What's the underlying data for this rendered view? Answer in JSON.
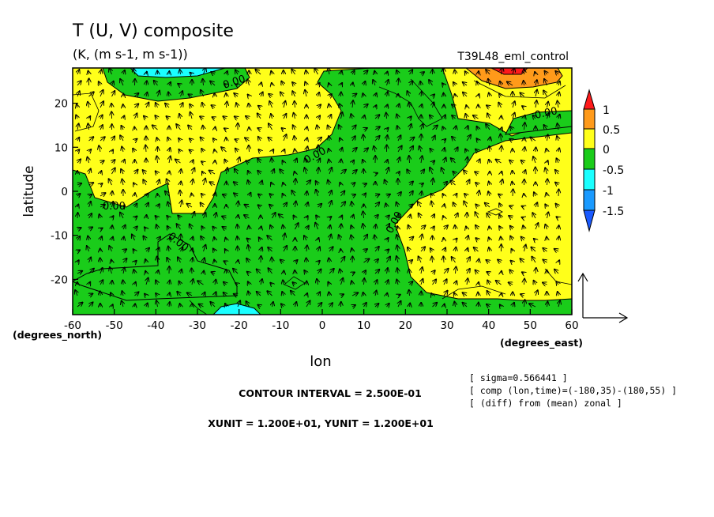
{
  "chart_data": {
    "type": "contour",
    "title": "T (U, V) composite",
    "subtitle": "(K, (m s-1, m s-1))",
    "run_label": "T39L48_eml_control",
    "xlabel": "lon",
    "ylabel": "latitude",
    "x_unit_label": "(degrees_east)",
    "y_unit_label": "(degrees_north)",
    "xlim": [
      -60,
      60
    ],
    "ylim": [
      -28,
      28
    ],
    "x_ticks": [
      -60,
      -50,
      -40,
      -30,
      -20,
      -10,
      0,
      10,
      20,
      30,
      40,
      50,
      60
    ],
    "y_ticks": [
      -20,
      -10,
      0,
      10,
      20
    ],
    "contour_labels": [
      "0.00",
      "0.00",
      "0.00",
      "0.00",
      "0.00",
      "0.00",
      "0.00"
    ],
    "colorbar": {
      "labels": [
        "1",
        "0.5",
        "0",
        "-0.5",
        "-1",
        "-1.5"
      ],
      "colors": [
        "#ff1a1a",
        "#ff9a1a",
        "#ffff1a",
        "#1acc1a",
        "#1affff",
        "#1a9aff",
        "#1a5aff"
      ]
    },
    "info_lines": [
      "[ sigma=0.566441 ]",
      "[ comp (lon,time)=(-180,35)-(180,55) ]",
      "[ (diff) from (mean) zonal ]"
    ],
    "contour_interval": "CONTOUR INTERVAL = 2.500E-01",
    "units": "XUNIT = 1.200E+01, YUNIT = 1.200E+01"
  }
}
